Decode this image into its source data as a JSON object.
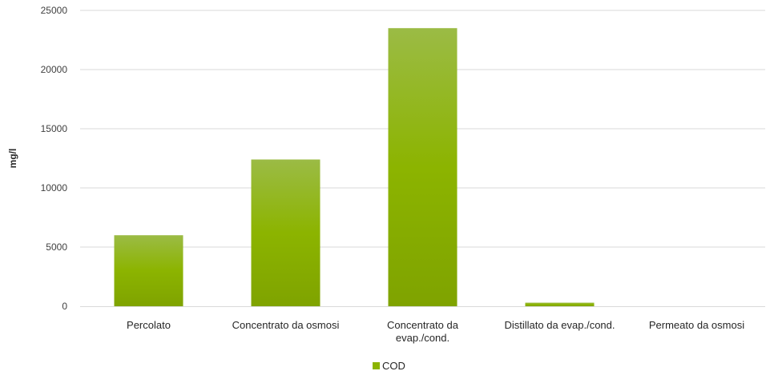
{
  "chart_data": {
    "type": "bar",
    "categories": [
      [
        "Percolato"
      ],
      [
        "Concentrato da osmosi"
      ],
      [
        "Concentrato da",
        "evap./cond."
      ],
      [
        "Distillato da evap./cond."
      ],
      [
        "Permeato da osmosi"
      ]
    ],
    "series": [
      {
        "name": "COD",
        "values": [
          6000,
          12400,
          23500,
          300,
          0
        ]
      }
    ],
    "ylabel": "mg/l",
    "xlabel": "",
    "ylim": [
      0,
      25000
    ],
    "yticks": [
      0,
      5000,
      10000,
      15000,
      20000,
      25000
    ],
    "grid": true,
    "legend_position": "bottom",
    "colors": {
      "bar_top": "#9bbb45",
      "bar_mid": "#8cb400",
      "bar_bottom": "#7fa300",
      "grid": "#d9d9d9"
    }
  }
}
